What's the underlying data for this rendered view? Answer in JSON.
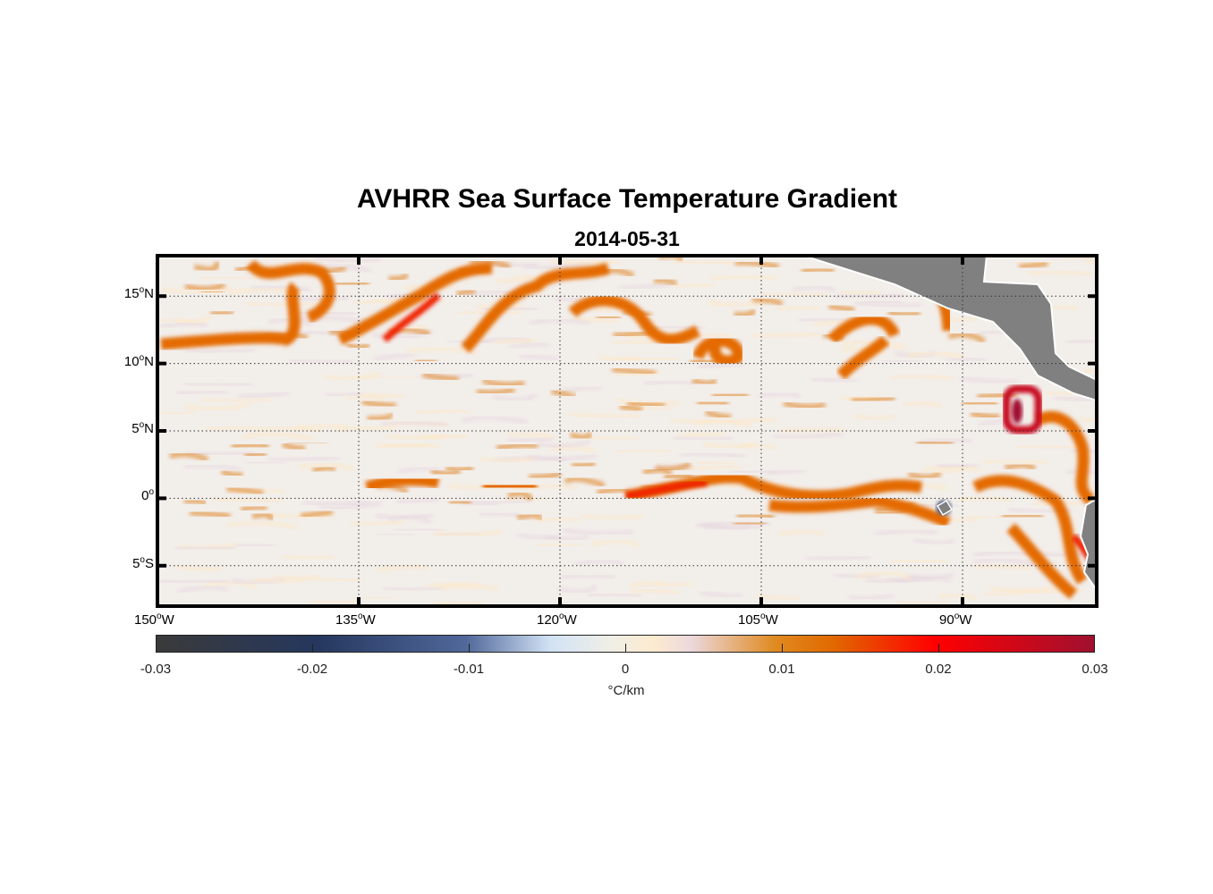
{
  "title": "AVHRR Sea Surface Temperature Gradient",
  "subtitle": "2014-05-31",
  "chart_data": {
    "type": "heatmap",
    "title": "AVHRR Sea Surface Temperature Gradient",
    "subtitle": "2014-05-31",
    "lon_range": [
      -150,
      -80
    ],
    "lat_range": [
      -8,
      18
    ],
    "lat_ticks": [
      {
        "v": 15,
        "deg": "15",
        "h": "N"
      },
      {
        "v": 10,
        "deg": "10",
        "h": "N"
      },
      {
        "v": 5,
        "deg": "5",
        "h": "N"
      },
      {
        "v": 0,
        "deg": "0",
        "h": ""
      },
      {
        "v": -5,
        "deg": "5",
        "h": "S"
      }
    ],
    "lon_ticks": [
      {
        "v": -150,
        "deg": "150",
        "h": "W"
      },
      {
        "v": -135,
        "deg": "135",
        "h": "W"
      },
      {
        "v": -120,
        "deg": "120",
        "h": "W"
      },
      {
        "v": -105,
        "deg": "105",
        "h": "W"
      },
      {
        "v": -90,
        "deg": "90",
        "h": "W"
      }
    ],
    "grid": "dotted",
    "colorbar": {
      "range": [
        -0.03,
        0.03
      ],
      "ticks": [
        "-0.03",
        "-0.02",
        "-0.01",
        "0",
        "0.01",
        "0.02",
        "0.03"
      ],
      "label": "°C/km",
      "location": "bottom"
    },
    "colors": {
      "land": "#808080",
      "low": "#3a3a3a",
      "mid_neg": "#25375e",
      "zero": "#f2eeea",
      "pos1": "#e07800",
      "pos2": "#ff0000",
      "high": "#a01030"
    }
  }
}
